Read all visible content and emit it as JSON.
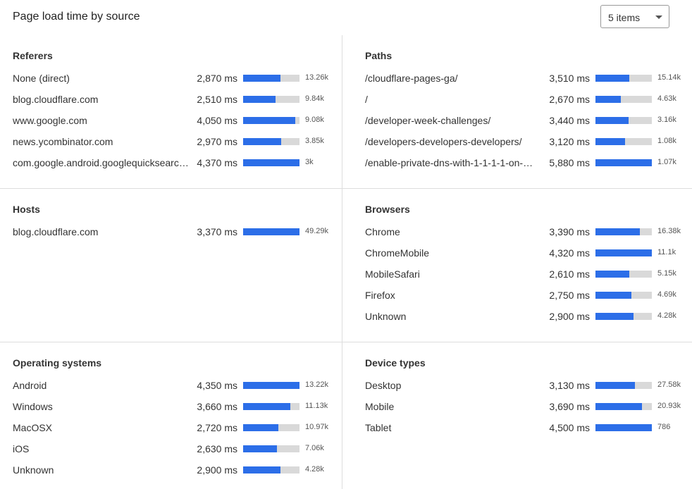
{
  "header": {
    "title": "Page load time by source",
    "dropdown": "5 items"
  },
  "panels": [
    {
      "title": "Referers",
      "rows": [
        {
          "label": "None (direct)",
          "ms": 2870,
          "ms_label": "2,870 ms",
          "count": "13.26k"
        },
        {
          "label": "blog.cloudflare.com",
          "ms": 2510,
          "ms_label": "2,510 ms",
          "count": "9.84k"
        },
        {
          "label": "www.google.com",
          "ms": 4050,
          "ms_label": "4,050 ms",
          "count": "9.08k"
        },
        {
          "label": "news.ycombinator.com",
          "ms": 2970,
          "ms_label": "2,970 ms",
          "count": "3.85k"
        },
        {
          "label": "com.google.android.googlequicksearc…",
          "ms": 4370,
          "ms_label": "4,370 ms",
          "count": "3k"
        }
      ]
    },
    {
      "title": "Paths",
      "rows": [
        {
          "label": "/cloudflare-pages-ga/",
          "ms": 3510,
          "ms_label": "3,510 ms",
          "count": "15.14k"
        },
        {
          "label": "/",
          "ms": 2670,
          "ms_label": "2,670 ms",
          "count": "4.63k"
        },
        {
          "label": "/developer-week-challenges/",
          "ms": 3440,
          "ms_label": "3,440 ms",
          "count": "3.16k"
        },
        {
          "label": "/developers-developers-developers/",
          "ms": 3120,
          "ms_label": "3,120 ms",
          "count": "1.08k"
        },
        {
          "label": "/enable-private-dns-with-1-1-1-1-on-…",
          "ms": 5880,
          "ms_label": "5,880 ms",
          "count": "1.07k"
        }
      ]
    },
    {
      "title": "Hosts",
      "rows": [
        {
          "label": "blog.cloudflare.com",
          "ms": 3370,
          "ms_label": "3,370 ms",
          "count": "49.29k"
        }
      ]
    },
    {
      "title": "Browsers",
      "rows": [
        {
          "label": "Chrome",
          "ms": 3390,
          "ms_label": "3,390 ms",
          "count": "16.38k"
        },
        {
          "label": "ChromeMobile",
          "ms": 4320,
          "ms_label": "4,320 ms",
          "count": "11.1k"
        },
        {
          "label": "MobileSafari",
          "ms": 2610,
          "ms_label": "2,610 ms",
          "count": "5.15k"
        },
        {
          "label": "Firefox",
          "ms": 2750,
          "ms_label": "2,750 ms",
          "count": "4.69k"
        },
        {
          "label": "Unknown",
          "ms": 2900,
          "ms_label": "2,900 ms",
          "count": "4.28k"
        }
      ]
    },
    {
      "title": "Operating systems",
      "rows": [
        {
          "label": "Android",
          "ms": 4350,
          "ms_label": "4,350 ms",
          "count": "13.22k"
        },
        {
          "label": "Windows",
          "ms": 3660,
          "ms_label": "3,660 ms",
          "count": "11.13k"
        },
        {
          "label": "MacOSX",
          "ms": 2720,
          "ms_label": "2,720 ms",
          "count": "10.97k"
        },
        {
          "label": "iOS",
          "ms": 2630,
          "ms_label": "2,630 ms",
          "count": "7.06k"
        },
        {
          "label": "Unknown",
          "ms": 2900,
          "ms_label": "2,900 ms",
          "count": "4.28k"
        }
      ]
    },
    {
      "title": "Device types",
      "rows": [
        {
          "label": "Desktop",
          "ms": 3130,
          "ms_label": "3,130 ms",
          "count": "27.58k"
        },
        {
          "label": "Mobile",
          "ms": 3690,
          "ms_label": "3,690 ms",
          "count": "20.93k"
        },
        {
          "label": "Tablet",
          "ms": 4500,
          "ms_label": "4,500 ms",
          "count": "786"
        }
      ]
    }
  ]
}
